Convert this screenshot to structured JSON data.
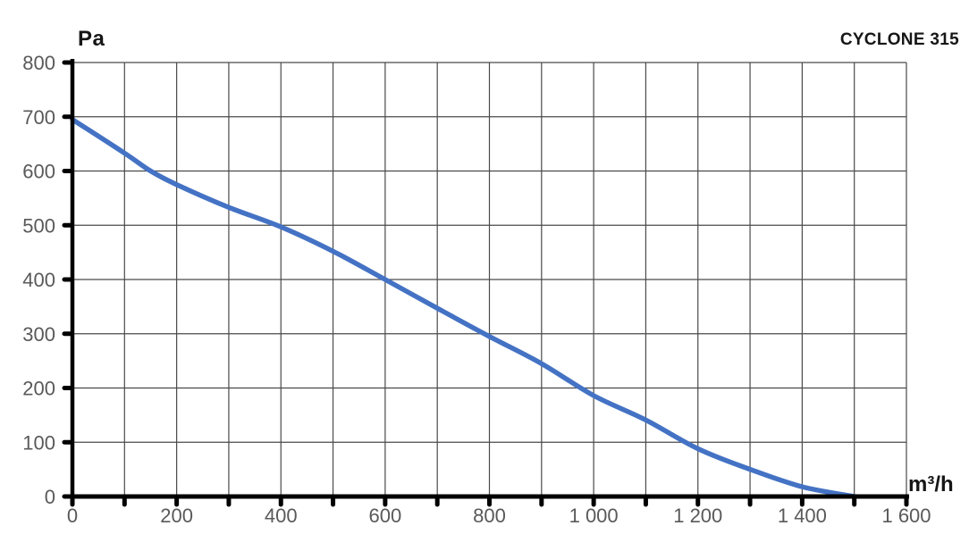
{
  "chart_data": {
    "type": "line",
    "title": "CYCLONE 315",
    "ylabel": "Pa",
    "xlabel": "m³/h",
    "xlim": [
      0,
      1600
    ],
    "ylim": [
      0,
      800
    ],
    "x_grid_step": 100,
    "y_grid_step": 100,
    "x_label_step": 200,
    "y_label_step": 100,
    "grid": true,
    "legend_position": "none",
    "x_tick_labels": [
      "0",
      "200",
      "400",
      "600",
      "800",
      "1 000",
      "1 200",
      "1 400",
      "1 600"
    ],
    "y_tick_labels": [
      "0",
      "100",
      "200",
      "300",
      "400",
      "500",
      "600",
      "700",
      "800"
    ],
    "series": [
      {
        "name": "CYCLONE 315",
        "x": [
          0,
          100,
          150,
          200,
          300,
          400,
          500,
          600,
          700,
          800,
          900,
          1000,
          1100,
          1200,
          1300,
          1400,
          1500
        ],
        "y": [
          695,
          633,
          600,
          575,
          533,
          497,
          452,
          400,
          347,
          295,
          245,
          186,
          141,
          88,
          50,
          18,
          0
        ],
        "color": "#4472C4"
      }
    ],
    "colors": {
      "curve": "#4472C4",
      "grid": "#4a4a4a",
      "axis": "#000000",
      "tick_label": "#595959",
      "title_text": "#161616"
    }
  }
}
